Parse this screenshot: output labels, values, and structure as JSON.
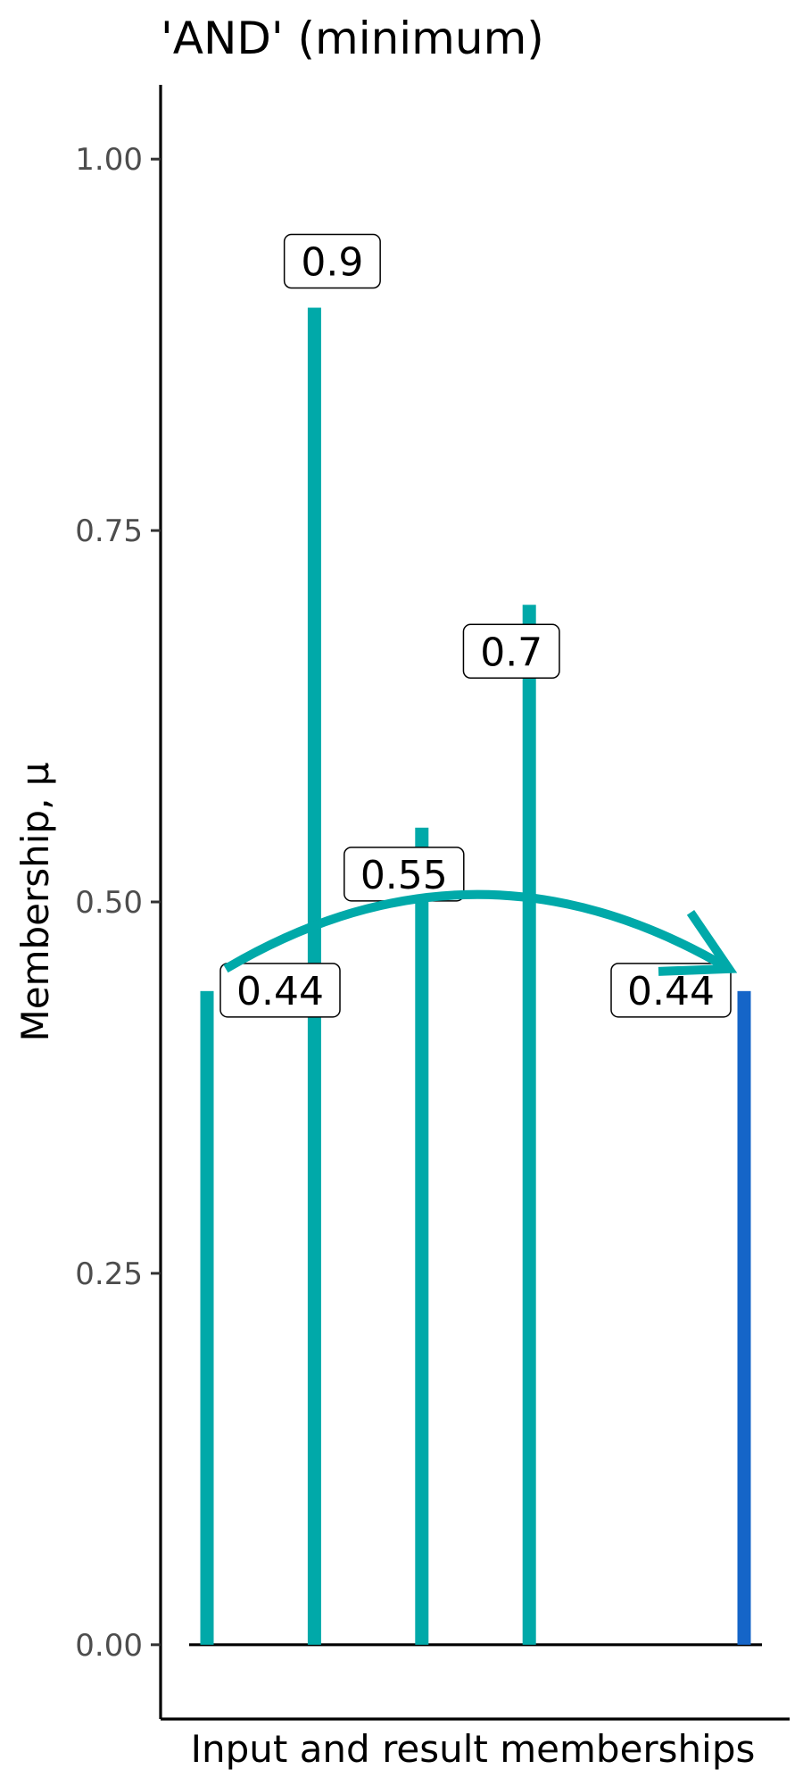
{
  "chart_data": {
    "type": "bar",
    "title": "'AND' (minimum)",
    "xlabel": "Input and result memberships",
    "ylabel": "Membership, μ",
    "ylim": [
      -0.05,
      1.05
    ],
    "y_ticks": [
      "0.00",
      "0.25",
      "0.50",
      "0.75",
      "1.00"
    ],
    "y_tick_values": [
      0,
      0.25,
      0.5,
      0.75,
      1.0
    ],
    "categories": [
      "",
      "",
      "",
      "",
      "",
      ""
    ],
    "series": [
      {
        "role": "input",
        "color": "#00a9a9",
        "points": [
          {
            "index": 0,
            "value": 0.44,
            "label": "0.44"
          },
          {
            "index": 1,
            "value": 0.9,
            "label": "0.9"
          },
          {
            "index": 2,
            "value": 0.55,
            "label": "0.55"
          },
          {
            "index": 3,
            "value": 0.7,
            "label": "0.7"
          }
        ]
      },
      {
        "role": "result",
        "color": "#1565c8",
        "points": [
          {
            "index": 5,
            "value": 0.44,
            "label": "0.44"
          }
        ]
      }
    ],
    "annotation": {
      "type": "curved-arrow",
      "color": "#00a9a9",
      "from_index": 0,
      "to_index": 5
    },
    "grid": false,
    "legend": "none"
  }
}
